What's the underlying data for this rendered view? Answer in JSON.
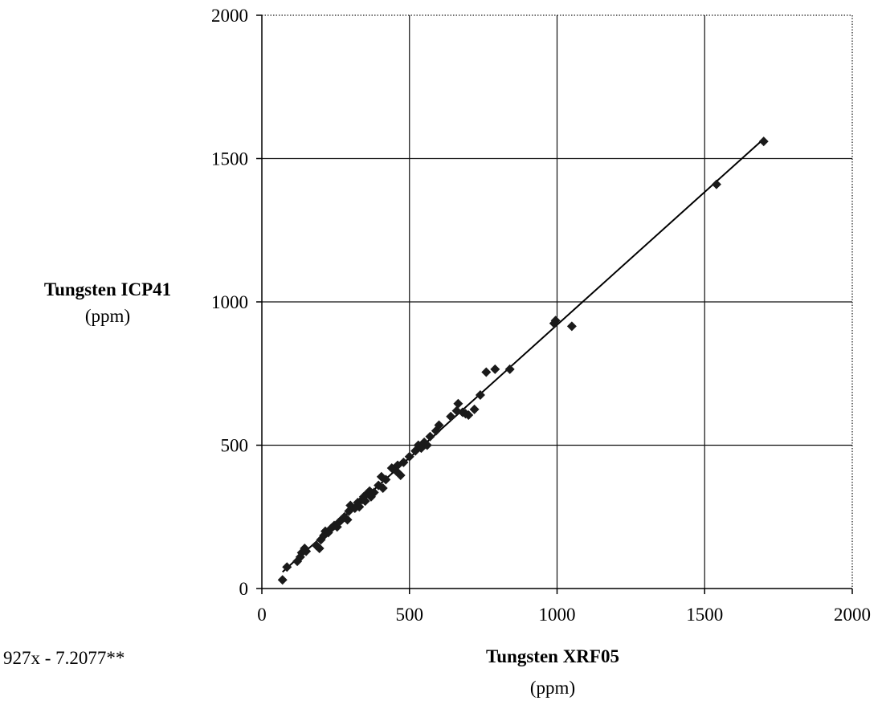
{
  "chart_data": {
    "type": "scatter",
    "xlabel": "Tungsten XRF05",
    "xlabel_unit": "(ppm)",
    "ylabel": "Tungsten ICP41",
    "ylabel_unit": "(ppm)",
    "xlim": [
      0,
      2000
    ],
    "ylim": [
      0,
      2000
    ],
    "x_ticks": [
      "0",
      "500",
      "1000",
      "1500",
      "2000"
    ],
    "y_ticks": [
      "0",
      "500",
      "1000",
      "1500",
      "2000"
    ],
    "grid": true,
    "annotation": "927x - 7.2077**",
    "trendline": {
      "slope": 0.927,
      "intercept": -7.2077,
      "x_range": [
        70,
        1700
      ]
    },
    "series": [
      {
        "color": "#1a1a1a",
        "marker": "diamond",
        "points": [
          [
            70,
            30
          ],
          [
            85,
            75
          ],
          [
            120,
            95
          ],
          [
            130,
            110
          ],
          [
            135,
            125
          ],
          [
            145,
            140
          ],
          [
            150,
            130
          ],
          [
            185,
            150
          ],
          [
            195,
            140
          ],
          [
            200,
            170
          ],
          [
            210,
            185
          ],
          [
            215,
            200
          ],
          [
            225,
            195
          ],
          [
            235,
            210
          ],
          [
            245,
            220
          ],
          [
            255,
            215
          ],
          [
            260,
            230
          ],
          [
            270,
            240
          ],
          [
            280,
            250
          ],
          [
            290,
            240
          ],
          [
            295,
            270
          ],
          [
            300,
            290
          ],
          [
            315,
            280
          ],
          [
            325,
            300
          ],
          [
            330,
            285
          ],
          [
            340,
            310
          ],
          [
            345,
            320
          ],
          [
            350,
            305
          ],
          [
            355,
            330
          ],
          [
            365,
            340
          ],
          [
            370,
            320
          ],
          [
            380,
            335
          ],
          [
            395,
            360
          ],
          [
            405,
            390
          ],
          [
            410,
            350
          ],
          [
            420,
            380
          ],
          [
            440,
            420
          ],
          [
            455,
            410
          ],
          [
            460,
            430
          ],
          [
            470,
            395
          ],
          [
            480,
            440
          ],
          [
            500,
            460
          ],
          [
            520,
            480
          ],
          [
            530,
            500
          ],
          [
            540,
            490
          ],
          [
            550,
            510
          ],
          [
            560,
            500
          ],
          [
            570,
            530
          ],
          [
            590,
            550
          ],
          [
            600,
            570
          ],
          [
            640,
            600
          ],
          [
            660,
            620
          ],
          [
            665,
            645
          ],
          [
            680,
            615
          ],
          [
            690,
            610
          ],
          [
            700,
            605
          ],
          [
            720,
            625
          ],
          [
            740,
            675
          ],
          [
            760,
            755
          ],
          [
            790,
            765
          ],
          [
            840,
            765
          ],
          [
            990,
            925
          ],
          [
            995,
            935
          ],
          [
            1050,
            915
          ],
          [
            1540,
            1410
          ],
          [
            1700,
            1560
          ]
        ]
      }
    ]
  }
}
